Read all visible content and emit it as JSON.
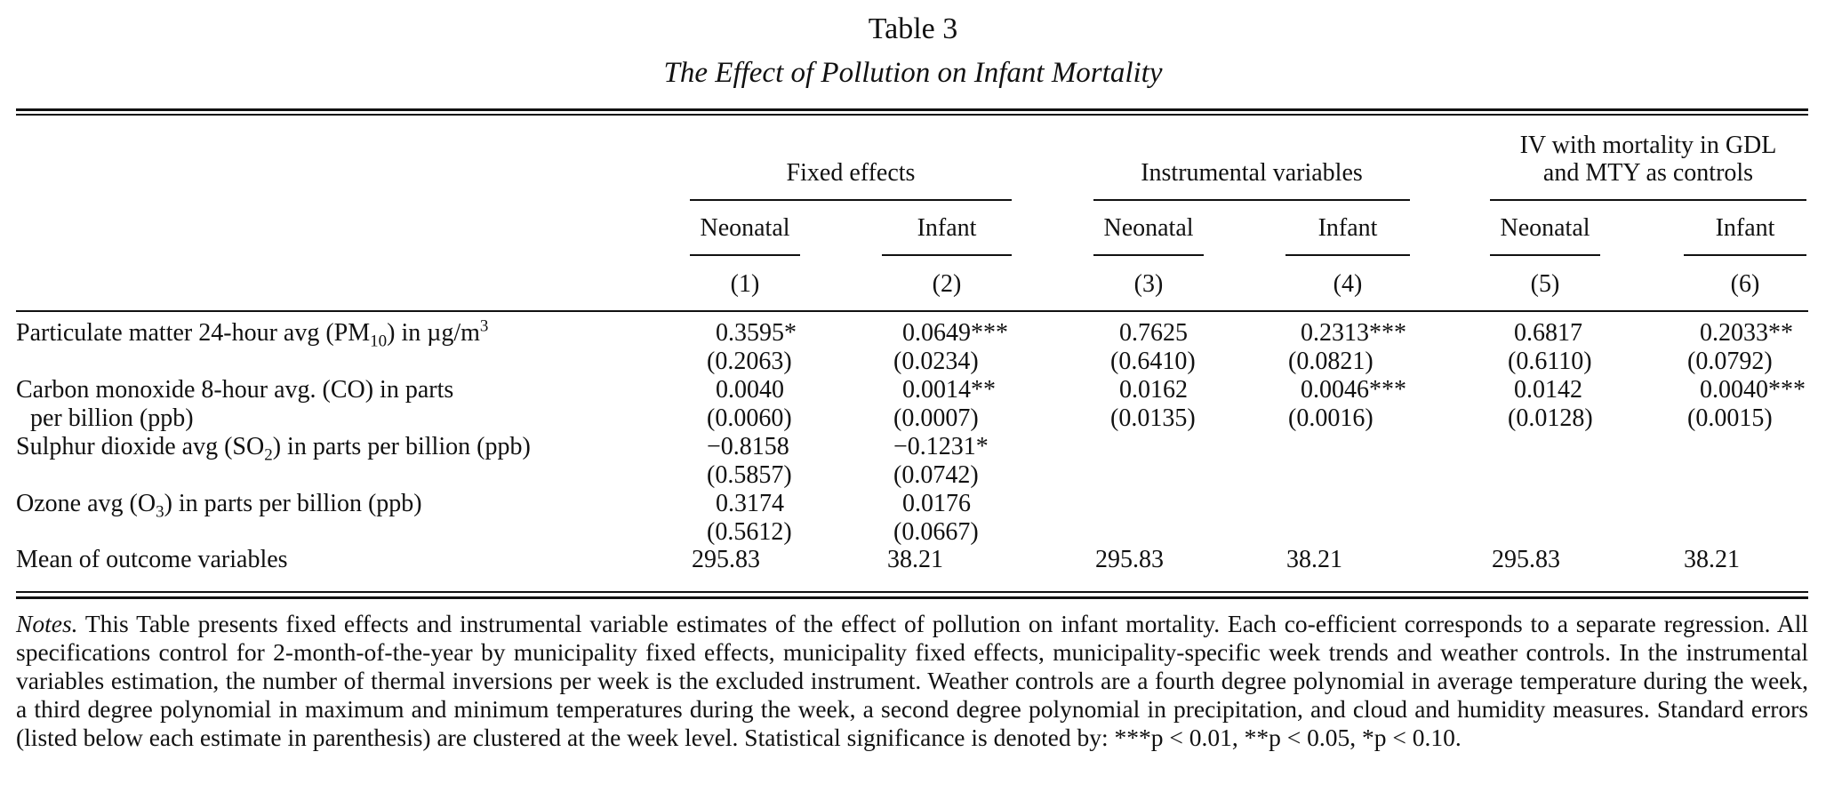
{
  "title": "Table 3",
  "subtitle": "The Effect of Pollution on Infant Mortality",
  "groups": [
    {
      "label": "Fixed effects"
    },
    {
      "label": "Instrumental variables"
    },
    {
      "label_line1": "IV with mortality in GDL",
      "label_line2": "and MTY as controls"
    }
  ],
  "subheaders": [
    "Neonatal",
    "Infant",
    "Neonatal",
    "Infant",
    "Neonatal",
    "Infant"
  ],
  "col_numbers": [
    "(1)",
    "(2)",
    "(3)",
    "(4)",
    "(5)",
    "(6)"
  ],
  "rows": [
    {
      "label_pre": "Particulate matter 24-hour avg (PM",
      "label_sub": "10",
      "label_mid": ") in µg/m",
      "label_sup": "3",
      "coef": [
        "0.3595*",
        "0.0649***",
        "0.7625",
        "0.2313***",
        "0.6817",
        "0.2033**"
      ],
      "se": [
        "(0.2063)",
        "(0.0234)",
        "(0.6410)",
        "(0.0821)",
        "(0.6110)",
        "(0.0792)"
      ]
    },
    {
      "label_line1": "Carbon monoxide 8-hour avg. (CO) in parts",
      "label_line2": "per billion (ppb)",
      "coef": [
        "0.0040",
        "0.0014**",
        "0.0162",
        "0.0046***",
        "0.0142",
        "0.0040***"
      ],
      "se": [
        "(0.0060)",
        "(0.0007)",
        "(0.0135)",
        "(0.0016)",
        "(0.0128)",
        "(0.0015)"
      ]
    },
    {
      "label_pre": "Sulphur dioxide avg (SO",
      "label_sub": "2",
      "label_post": ") in parts per billion (ppb)",
      "coef": [
        "−0.8158",
        "−0.1231*"
      ],
      "se": [
        "(0.5857)",
        "(0.0742)"
      ]
    },
    {
      "label_pre": "Ozone avg (O",
      "label_sub": "3",
      "label_post": ") in parts per billion (ppb)",
      "coef": [
        "0.3174",
        "0.0176"
      ],
      "se": [
        "(0.5612)",
        "(0.0667)"
      ]
    }
  ],
  "mean_row": {
    "label": "Mean of outcome variables",
    "values": [
      "295.83",
      "38.21",
      "295.83",
      "38.21",
      "295.83",
      "38.21"
    ]
  },
  "notes": {
    "lead": "Notes.",
    "text": " This Table presents fixed effects and instrumental variable estimates of the effect of pollution on infant mortality. Each co-efficient corresponds to a separate regression. All specifications control for  2-month-of-the-year by municipality fixed effects, municipality fixed effects, municipality-specific week trends and weather controls. In the instrumental variables estimation, the number of thermal inversions per week is the excluded instrument.  Weather controls are a fourth degree polynomial in average temperature during the week, a third degree polynomial in maximum and minimum temperatures during the week, a second degree polynomial in precipitation, and cloud and humidity measures.  Standard errors (listed below each estimate in parenthesis) are clustered at the week level. Statistical significance is denoted by:  ***p < 0.01, **p < 0.05, *p < 0.10."
  }
}
